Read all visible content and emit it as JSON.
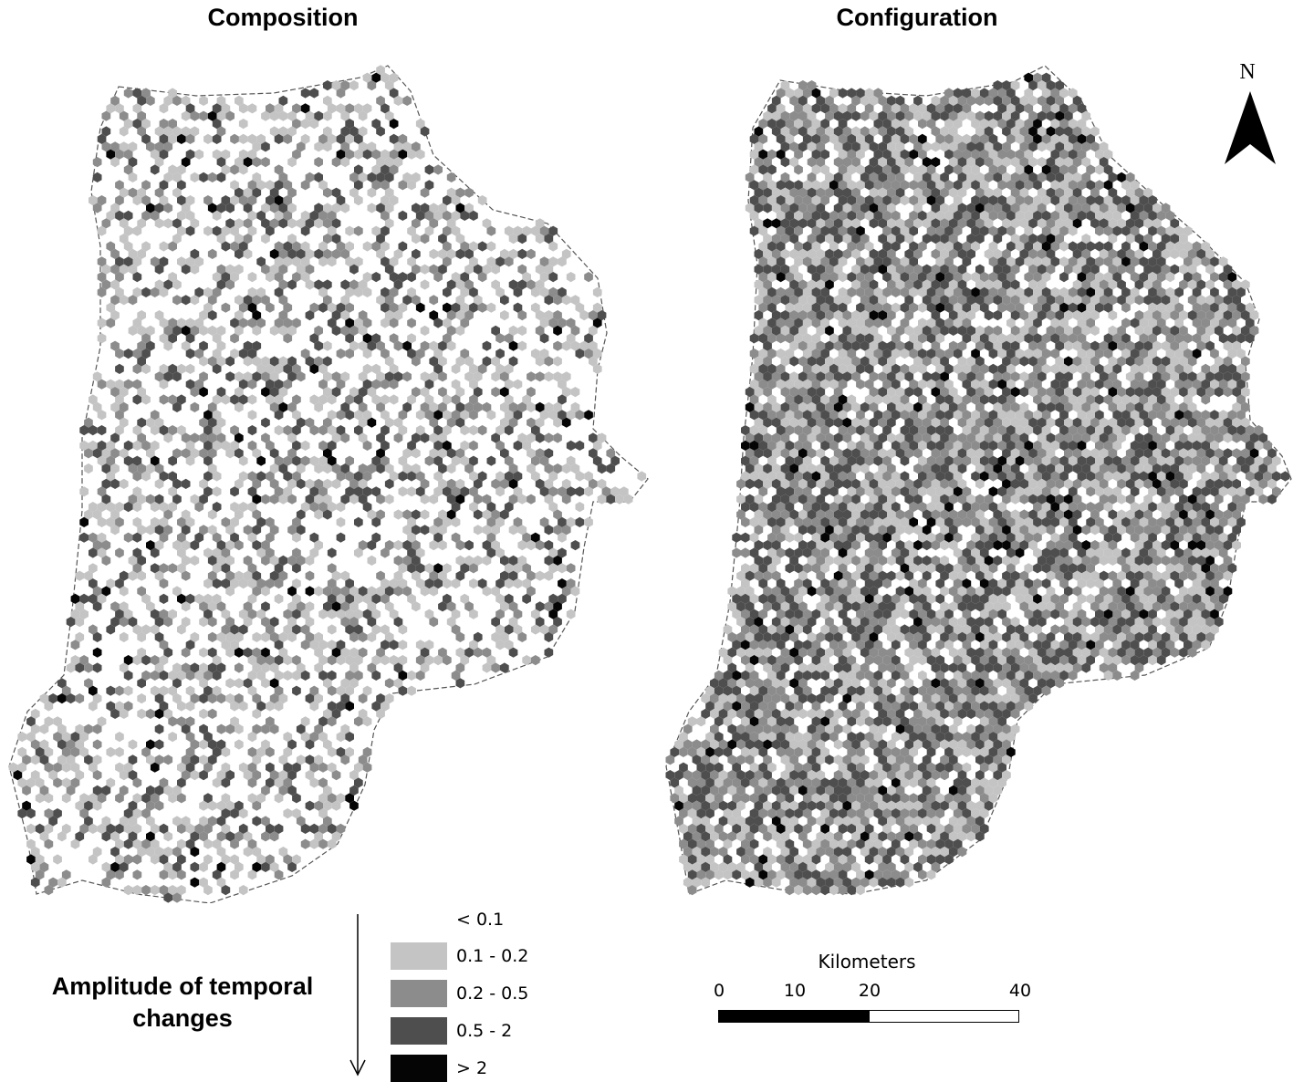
{
  "panels": [
    {
      "title": "Composition",
      "profile": "sparse"
    },
    {
      "title": "Configuration",
      "profile": "dense"
    }
  ],
  "north_arrow": {
    "label": "N"
  },
  "legend": {
    "title": "Amplitude of temporal changes",
    "title_lines": [
      "Amplitude of temporal",
      "changes"
    ],
    "classes": [
      {
        "label": "< 0.1",
        "color": "#ffffff"
      },
      {
        "label": "0.1 - 0.2",
        "color": "#c4c4c4"
      },
      {
        "label": "0.2 - 0.5",
        "color": "#8c8c8c"
      },
      {
        "label": "0.5 - 2",
        "color": "#4e4e4e"
      },
      {
        "label": "> 2",
        "color": "#050505"
      }
    ]
  },
  "scale_bar": {
    "unit_label": "Kilometers",
    "ticks": [
      "0",
      "10",
      "20",
      "40"
    ]
  }
}
